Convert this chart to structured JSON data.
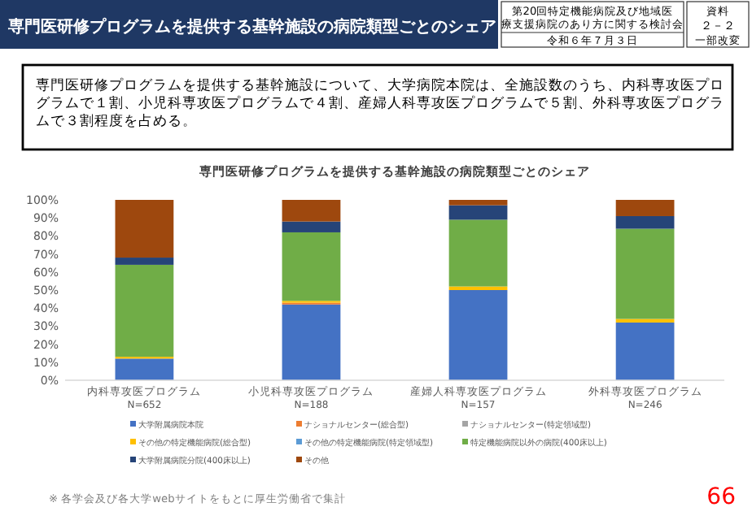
{
  "chart_data": {
    "type": "bar",
    "stacked": true,
    "title": "専門医研修プログラムを提供する基幹施設の病院類型ごとのシェア",
    "subtitle": "専門医研修プログラムを提供する基幹施設の病院類型ごとのシェア",
    "annotations": [
      "第20回特定機能病院及び地域医療支援病院のあり方に関する検討会",
      "令和６年７月３日",
      "資料",
      "２－２",
      "一部改変",
      "専門医研修プログラムを提供する基幹施設について、大学病院本院は、全施設数のうち、内科専攻医プログラムで１割、小児科専攻医プログラムで４割、産婦人科専攻医プログラムで５割、外科専攻医プログラムで３割程度を占める。",
      "※ 各学会及び各大学webサイトをもとに厚生労働省で集計",
      "66"
    ],
    "categories": [
      "内科専攻医プログラム\nN=652",
      "小児科専攻医プログラム\nN=188",
      "産婦人科専攻医プログラム\nN=157",
      "外科専攻医プログラム\nN=246"
    ],
    "ylim": [
      0,
      1
    ],
    "yticks": [
      {
        "value": 0,
        "label": "0%"
      },
      {
        "value": 0.1,
        "label": "10%"
      },
      {
        "value": 0.2,
        "label": "20%"
      },
      {
        "value": 0.3,
        "label": "30%"
      },
      {
        "value": 0.4,
        "label": "40%"
      },
      {
        "value": 0.5,
        "label": "50%"
      },
      {
        "value": 0.6,
        "label": "60%"
      },
      {
        "value": 0.7,
        "label": "70%"
      },
      {
        "value": 0.8,
        "label": "80%"
      },
      {
        "value": 0.9,
        "label": "90%"
      },
      {
        "value": 1,
        "label": "100%"
      }
    ],
    "grid": false,
    "legend": "bottom",
    "series": [
      {
        "name": "大学附属病院本院",
        "color": "#4472c4",
        "values": [
          0.12,
          0.42,
          0.5,
          0.32
        ]
      },
      {
        "name": "ナショナルセンター(総合型)",
        "color": "#ed7d31",
        "values": [
          0,
          0.01,
          0,
          0
        ]
      },
      {
        "name": "ナショナルセンター(特定領域型)",
        "color": "#a5a5a5",
        "values": [
          0,
          0,
          0,
          0
        ]
      },
      {
        "name": "その他の特定機能病院(総合型)",
        "color": "#ffc000",
        "values": [
          0.01,
          0.01,
          0.02,
          0.02
        ]
      },
      {
        "name": "その他の特定機能病院(特定領域型)",
        "color": "#5b9bd5",
        "values": [
          0,
          0,
          0,
          0
        ]
      },
      {
        "name": "特定機能病院以外の病院(400床以上)",
        "color": "#70ad47",
        "values": [
          0.51,
          0.38,
          0.37,
          0.5
        ]
      },
      {
        "name": "大学附属病院分院(400床以上)",
        "color": "#264478",
        "values": [
          0.04,
          0.06,
          0.08,
          0.07
        ]
      },
      {
        "name": "その他",
        "color": "#9e480e",
        "values": [
          0.32,
          0.12,
          0.03,
          0.09
        ]
      }
    ]
  }
}
